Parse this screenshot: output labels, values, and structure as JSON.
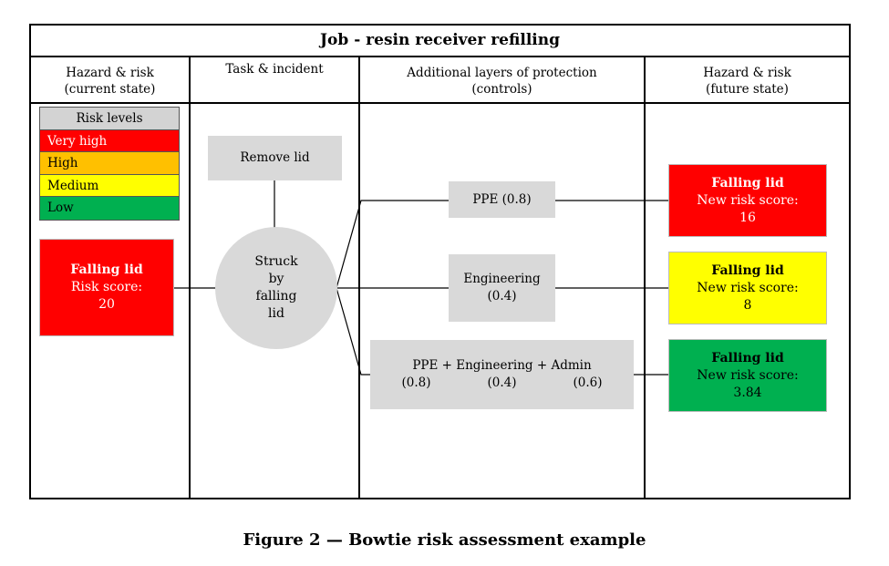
{
  "title": "Job - resin receiver refilling",
  "headers": {
    "col1": [
      "Hazard & risk",
      "(current state)"
    ],
    "col2": [
      "Task & incident"
    ],
    "col3": [
      "Additional layers of protection",
      "(controls)"
    ],
    "col4": [
      "Hazard & risk",
      "(future state)"
    ]
  },
  "legend": {
    "title": "Risk levels",
    "levels": [
      {
        "label": "Very high",
        "color": "#ff0000"
      },
      {
        "label": "High",
        "color": "#ffc000"
      },
      {
        "label": "Medium",
        "color": "#ffff00"
      },
      {
        "label": "Low",
        "color": "#00b050"
      }
    ]
  },
  "current_risk": {
    "name": "Falling lid",
    "score_label": "Risk score:",
    "score": "20",
    "color": "#ff0000"
  },
  "task": "Remove lid",
  "incident": [
    "Struck",
    "by",
    "falling",
    "lid"
  ],
  "controls": [
    {
      "lines": [
        "PPE (0.8)"
      ]
    },
    {
      "lines": [
        "Engineering",
        "(0.4)"
      ]
    },
    {
      "line1": "PPE + Engineering + Admin",
      "weights": [
        "(0.8)",
        "(0.4)",
        "(0.6)"
      ]
    }
  ],
  "future_risks": [
    {
      "name": "Falling lid",
      "score_label": "New risk score:",
      "score": "16",
      "color": "#ff0000"
    },
    {
      "name": "Falling lid",
      "score_label": "New risk score:",
      "score": "8",
      "color": "#ffff00"
    },
    {
      "name": "Falling lid",
      "score_label": "New risk score:",
      "score": "3.84",
      "color": "#00b050"
    }
  ],
  "caption": "Figure 2 — Bowtie risk assessment example"
}
